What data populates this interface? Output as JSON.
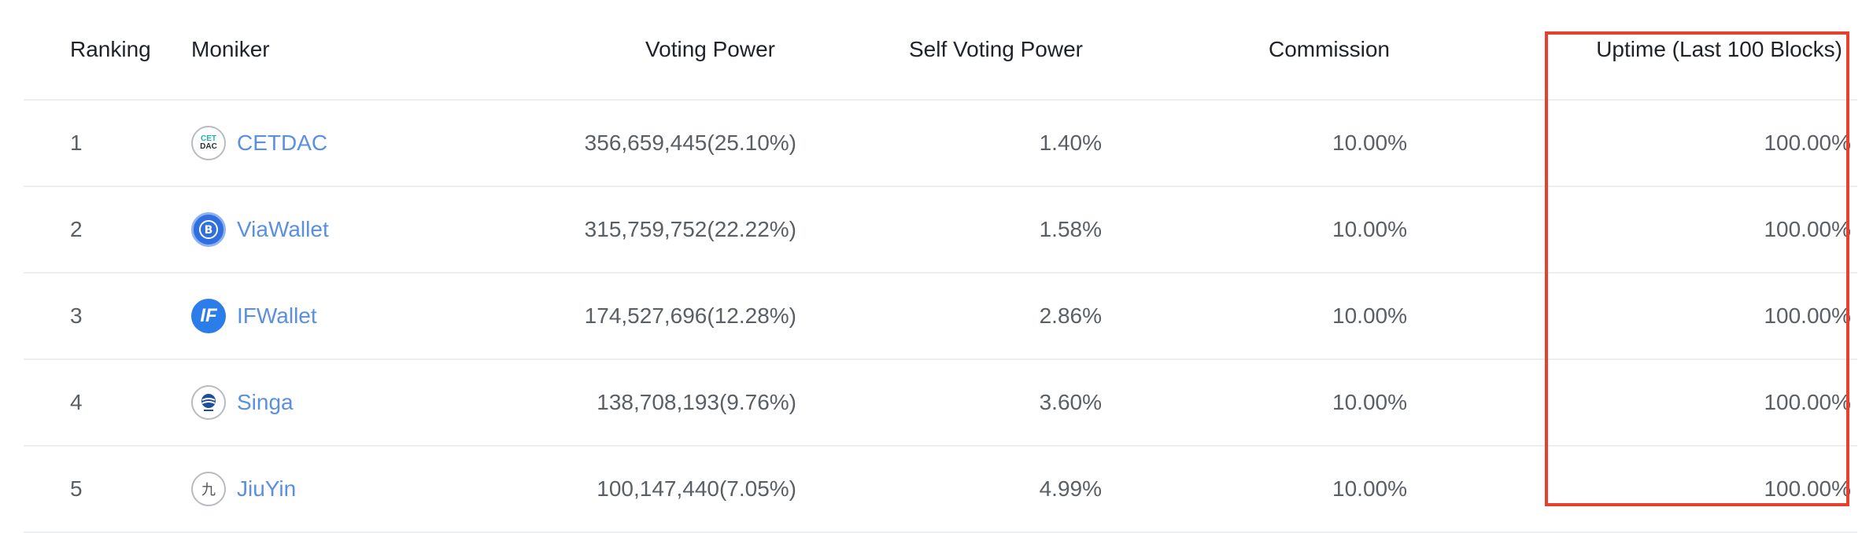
{
  "table": {
    "headers": {
      "ranking": "Ranking",
      "moniker": "Moniker",
      "voting_power": "Voting Power",
      "self_voting_power": "Self Voting Power",
      "commission": "Commission",
      "uptime": "Uptime (Last 100 Blocks)"
    },
    "rows": [
      {
        "rank": "1",
        "moniker": "CETDAC",
        "avatar": "cetdac-logo-icon",
        "voting_power": "356,659,445(25.10%)",
        "self_voting_power": "1.40%",
        "commission": "10.00%",
        "uptime": "100.00%"
      },
      {
        "rank": "2",
        "moniker": "ViaWallet",
        "avatar": "viawallet-logo-icon",
        "voting_power": "315,759,752(22.22%)",
        "self_voting_power": "1.58%",
        "commission": "10.00%",
        "uptime": "100.00%"
      },
      {
        "rank": "3",
        "moniker": "IFWallet",
        "avatar": "ifwallet-logo-icon",
        "voting_power": "174,527,696(12.28%)",
        "self_voting_power": "2.86%",
        "commission": "10.00%",
        "uptime": "100.00%"
      },
      {
        "rank": "4",
        "moniker": "Singa",
        "avatar": "singa-logo-icon",
        "voting_power": "138,708,193(9.76%)",
        "self_voting_power": "3.60%",
        "commission": "10.00%",
        "uptime": "100.00%"
      },
      {
        "rank": "5",
        "moniker": "JiuYin",
        "avatar": "jiuyin-logo-icon",
        "voting_power": "100,147,440(7.05%)",
        "self_voting_power": "4.99%",
        "commission": "10.00%",
        "uptime": "100.00%"
      }
    ]
  },
  "logos": {
    "cetdac_top": "CET",
    "cetdac_bottom": "DAC",
    "ifwallet": "IF",
    "jiuyin": "九"
  },
  "colors": {
    "link": "#5b8fe0",
    "highlight_border": "#e8402e",
    "row_divider": "#eceef1"
  }
}
